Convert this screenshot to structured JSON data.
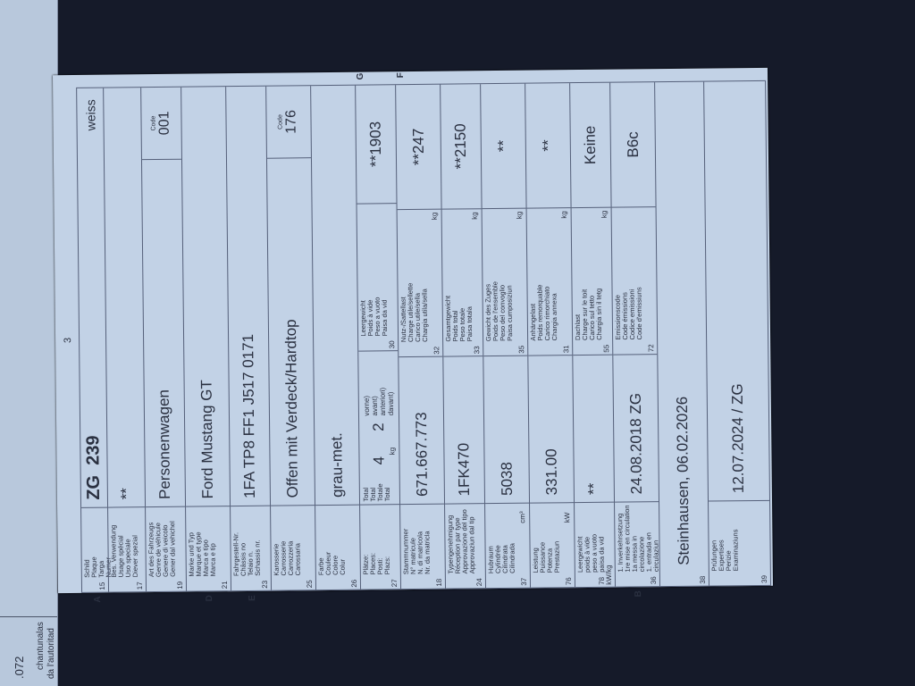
{
  "left_page": {
    "number": ".072",
    "text1": "chantunalas",
    "text2": "da l'autoritad"
  },
  "page_number": "3",
  "rows": [
    {
      "letter": "A",
      "num": "15",
      "labels": [
        "Schild",
        "Plaque",
        "Targa",
        "Numer"
      ],
      "value": "ZG",
      "value2": "239",
      "extra": "weiss"
    },
    {
      "num": "17",
      "labels": [
        "Bes. Verwendung",
        "Usage spécial",
        "Uso speciale",
        "Diever spezial"
      ],
      "value": "**"
    },
    {
      "num": "19",
      "labels": [
        "Art des Fahrzeugs",
        "Genre de véhicule",
        "Genere di veicolo",
        "Gener dal vehichel"
      ],
      "value": "Personenwagen",
      "code_label": "Code",
      "code": "001"
    },
    {
      "letter": "D",
      "num": "21",
      "labels": [
        "Marke und Typ",
        "Marque et type",
        "Marca e tipo",
        "Marca e tip"
      ],
      "value": "Ford Mustang GT"
    },
    {
      "letter": "E",
      "num": "23",
      "labels": [
        "Fahrgestell-Nr.",
        "Châssis no",
        "Telaio n.",
        "Schassis nr."
      ],
      "value": "1FA TP8 FF1 J517 0171"
    },
    {
      "num": "25",
      "labels": [
        "Karosserie",
        "Carrosserie",
        "Carrozzeria",
        "Carossaria"
      ],
      "value": "Offen mit Verdeck/Hardtop",
      "code_label": "Code",
      "code": "176"
    },
    {
      "num": "26",
      "labels": [
        "Farbe",
        "Couleur",
        "Colore",
        "Colur"
      ],
      "value": "grau-met."
    }
  ],
  "seats": {
    "num": "27",
    "labels": [
      "Plätze:",
      "Places:",
      "Posti:",
      "Plazs:"
    ],
    "total_labels": [
      "Total",
      "Total",
      "Totale",
      "Total"
    ],
    "total": "4",
    "front": "2",
    "front_labels": [
      "vorne)",
      "avant)",
      "anteriori)",
      "davant)"
    ]
  },
  "split_rows": [
    {
      "num": "18",
      "labels": [
        "Stammnummer",
        "N° matricule",
        "N. di matricola",
        "Nr. da matricla"
      ],
      "unit": "",
      "value": "671.667.773",
      "rletter": "G",
      "rnum": "30",
      "rlabels": [
        "Leergewicht",
        "Poids à vide",
        "Peso a vuoto",
        "Paisa da vid"
      ],
      "runit": "kg",
      "rvalue": "**1903"
    },
    {
      "num": "24",
      "labels": [
        "Typengenehmigung",
        "Réception par type",
        "Approvazione del tipo",
        "Approvaziun dal tip"
      ],
      "unit": "",
      "value": "1FK470",
      "rletter": "F",
      "rnum": "32",
      "rlabels": [
        "Nutz-/Sattellast",
        "Charge utile/sellette",
        "Carico utile/sella",
        "Chargia utila/sella"
      ],
      "runit": "kg",
      "rvalue": "**247"
    },
    {
      "num": "37",
      "labels": [
        "Hubraum",
        "Cylindrée",
        "Cilindrata",
        "Cilindrada"
      ],
      "unit": "cm³",
      "value": "5038",
      "rnum": "33",
      "rlabels": [
        "Gesamtgewicht",
        "Poids total",
        "Peso totale",
        "Paisa totala"
      ],
      "runit": "kg",
      "rvalue": "**2150"
    },
    {
      "num": "76",
      "labels": [
        "Leistung",
        "Puissance",
        "Potenza",
        "Prestaziun"
      ],
      "unit": "kW",
      "value": "331.00",
      "rnum": "35",
      "rlabels": [
        "Gewicht des Zuges",
        "Poids de l'ensemble",
        "Peso del convoglio",
        "Paisa cumposiziun"
      ],
      "runit": "kg",
      "rvalue": "**"
    },
    {
      "num": "78 kW/kg",
      "labels": [
        "Leergewicht",
        "poids à vide",
        "peso a vuoto",
        "paisa da vid"
      ],
      "unit": "",
      "value": "**",
      "rnum": "31",
      "rlabels": [
        "Anhängelast",
        "Poids remorquable",
        "Carico rimorchiato",
        "Chargia annexa"
      ],
      "runit": "kg",
      "rvalue": "**"
    },
    {
      "letter": "B",
      "num": "36",
      "labels": [
        "1. Inverkehrsetzung",
        "1re mise en circulation",
        "1a messa in circolazione",
        "1. entrada en circulaziun"
      ],
      "unit": "",
      "value": "24.08.2018 ZG",
      "rnum": "55",
      "rlabels": [
        "Dachlast",
        "Charge sur le toit",
        "Carico sul tetto",
        "Chargia sin il tetg"
      ],
      "runit": "kg",
      "rvalue": "Keine"
    }
  ],
  "emission": {
    "rnum": "72",
    "rlabels": [
      "Emissionscode",
      "Code émissions",
      "Codice emissioni",
      "Code d'emissiuns"
    ],
    "rvalue": "B6c"
  },
  "row38": {
    "num": "38",
    "value": "Steinhausen, 06.02.2026"
  },
  "row39": {
    "num": "39",
    "labels": [
      "Prüfungen",
      "Expertises",
      "Perizie",
      "Examinaziuns"
    ],
    "value": "12.07.2024 / ZG"
  }
}
